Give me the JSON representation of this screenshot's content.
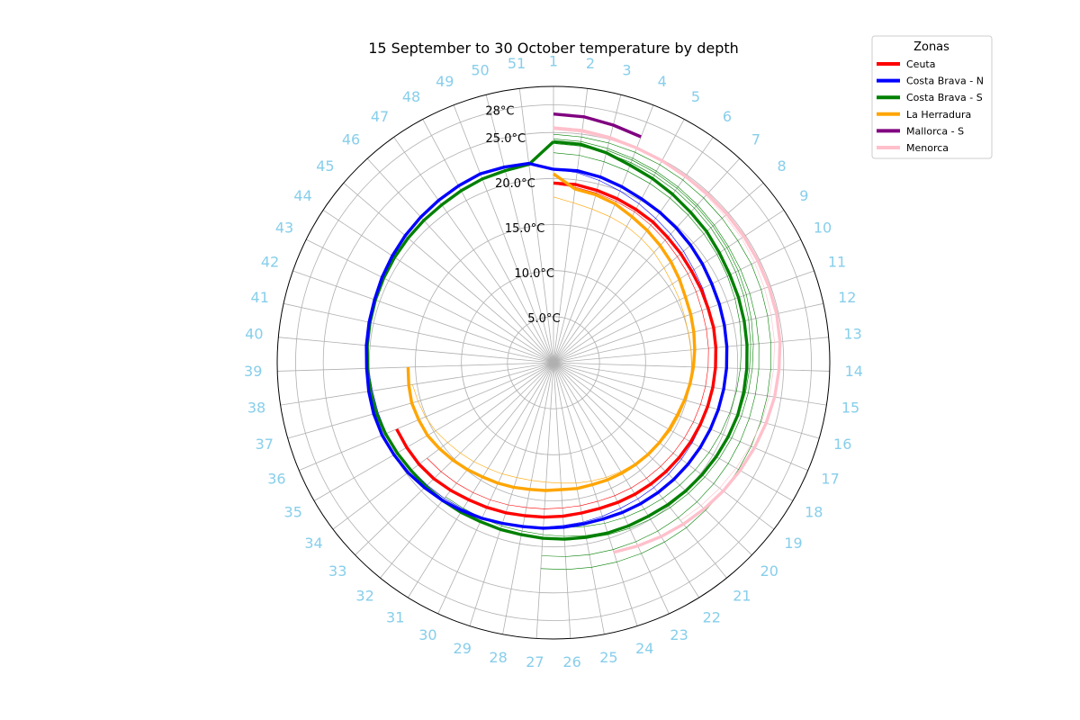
{
  "chart_data": {
    "type": "line",
    "projection": "polar",
    "title": "15 September to 30 October temperature by depth",
    "angular_ticks": [
      "1",
      "2",
      "3",
      "4",
      "5",
      "6",
      "7",
      "8",
      "9",
      "10",
      "11",
      "12",
      "13",
      "14",
      "15",
      "16",
      "17",
      "18",
      "19",
      "20",
      "21",
      "22",
      "23",
      "24",
      "25",
      "26",
      "27",
      "28",
      "29",
      "30",
      "31",
      "32",
      "33",
      "34",
      "35",
      "36",
      "37",
      "38",
      "39",
      "40",
      "41",
      "42",
      "43",
      "44",
      "45",
      "46",
      "47",
      "48",
      "49",
      "50",
      "51"
    ],
    "angular_tick_color": "#87ceeb",
    "radial_ticks": [
      {
        "value": 5,
        "label": "5.0°C"
      },
      {
        "value": 10,
        "label": "10.0°C"
      },
      {
        "value": 15,
        "label": "15.0°C"
      },
      {
        "value": 20,
        "label": "20.0°C"
      },
      {
        "value": 25,
        "label": "25.0°C"
      },
      {
        "value": 28,
        "label": "28°C"
      }
    ],
    "rlim": [
      0,
      30
    ],
    "grid": true,
    "legend": {
      "title": "Zonas",
      "placement": "upper-right outside",
      "entries": [
        {
          "label": "Ceuta",
          "color": "#ff0000"
        },
        {
          "label": "Costa Brava - N",
          "color": "#0000ff"
        },
        {
          "label": "Costa Brava - S",
          "color": "#008000"
        },
        {
          "label": "La Herradura",
          "color": "#ffa500"
        },
        {
          "label": "Mallorca - S",
          "color": "#800080"
        },
        {
          "label": "Menorca",
          "color": "#ffc0cb"
        }
      ]
    },
    "series": [
      {
        "name": "Costa Brava - S",
        "color": "#008000",
        "style": "thin",
        "x": [
          1,
          2,
          3,
          4,
          5,
          6,
          7,
          8,
          9,
          10,
          11,
          12,
          13,
          14,
          15,
          16,
          17,
          18,
          19,
          20,
          21,
          22,
          23,
          24,
          25,
          26,
          27
        ],
        "y": [
          24.8,
          24.7,
          24.6,
          24.5,
          24.4,
          24.3,
          24.2,
          24.1,
          24.0,
          24.0,
          23.9,
          23.8,
          23.7,
          23.6,
          23.5,
          23.4,
          23.3,
          23.2,
          23.1,
          23.0,
          23.0,
          22.9,
          22.8,
          22.7,
          22.6,
          22.5,
          22.4
        ]
      },
      {
        "name": "Costa Brava - S",
        "color": "#008000",
        "style": "thin",
        "x": [
          1,
          2,
          3,
          4,
          5,
          6,
          7,
          8,
          9,
          10,
          11,
          12,
          13,
          14,
          15,
          16,
          17,
          18,
          19,
          20,
          21,
          22,
          23,
          24,
          25,
          26,
          27
        ],
        "y": [
          24.3,
          24.2,
          24.0,
          23.8,
          23.6,
          23.4,
          23.2,
          23.0,
          22.8,
          22.7,
          22.6,
          22.5,
          22.4,
          22.3,
          22.2,
          22.1,
          22.0,
          21.9,
          21.8,
          21.7,
          21.6,
          21.5,
          21.4,
          21.3,
          21.2,
          21.1,
          21.0
        ]
      },
      {
        "name": "Costa Brava - S",
        "color": "#008000",
        "style": "thin",
        "x": [
          1,
          2,
          3,
          4,
          5,
          6,
          7,
          8,
          9,
          10,
          11,
          12,
          13,
          14,
          15,
          16,
          17,
          18,
          19,
          20,
          21,
          22,
          23,
          24,
          25,
          26,
          27,
          28,
          29,
          30,
          31,
          32
        ],
        "y": [
          23.8,
          23.7,
          23.5,
          23.3,
          23.1,
          22.9,
          22.7,
          22.5,
          22.3,
          22.1,
          21.9,
          21.7,
          21.5,
          21.3,
          21.1,
          20.9,
          20.7,
          20.5,
          20.3,
          20.1,
          19.9,
          19.7,
          19.5,
          19.3,
          19.1,
          18.9,
          18.7,
          18.6,
          18.6,
          18.6,
          18.6,
          18.7
        ]
      },
      {
        "name": "Costa Brava - S",
        "color": "#008000",
        "style": "thin",
        "x": [
          1,
          2,
          3,
          4,
          5,
          6,
          7,
          8,
          9,
          10,
          11,
          12,
          13,
          14,
          15,
          16,
          17,
          18,
          19,
          20,
          21,
          22,
          23,
          24,
          25,
          26
        ],
        "y": [
          22.8,
          22.7,
          22.5,
          22.3,
          22.1,
          21.9,
          21.7,
          21.5,
          21.3,
          21.1,
          20.9,
          20.7,
          20.5,
          20.3,
          20.1,
          19.9,
          19.7,
          19.5,
          19.3,
          19.1,
          18.9,
          18.7,
          18.5,
          18.3,
          18.1,
          17.9
        ]
      },
      {
        "name": "Costa Brava - S",
        "color": "#008000",
        "style": "thin",
        "x": [
          3,
          4,
          5,
          6,
          7,
          8,
          9,
          10,
          11,
          12,
          13,
          14,
          15,
          16,
          17,
          18,
          19,
          20,
          21,
          22,
          23,
          24,
          25,
          26
        ],
        "y": [
          23.8,
          23.6,
          23.4,
          23.2,
          23.0,
          22.8,
          22.6,
          22.4,
          22.2,
          22.0,
          21.8,
          21.6,
          21.4,
          21.2,
          21.0,
          20.8,
          20.6,
          20.4,
          20.2,
          20.0,
          19.8,
          19.6,
          19.4,
          19.2
        ]
      },
      {
        "name": "Costa Brava - N",
        "color": "#0000ff",
        "style": "thin",
        "x": [
          1,
          2,
          3,
          4,
          5,
          6,
          7,
          8,
          9,
          10,
          11,
          12,
          13,
          14,
          15,
          16,
          17,
          18,
          19,
          20,
          21,
          22,
          23,
          24,
          25,
          26,
          27,
          28,
          29,
          30,
          31,
          32,
          33,
          34,
          35,
          36,
          37,
          38,
          39,
          40
        ],
        "y": [
          21.0,
          20.8,
          20.4,
          20.0,
          19.6,
          19.2,
          18.9,
          18.6,
          18.3,
          18.1,
          17.9,
          17.7,
          17.6,
          17.5,
          17.4,
          17.4,
          17.4,
          17.4,
          17.4,
          17.4,
          17.4,
          17.4,
          17.4,
          17.5,
          17.6,
          17.7,
          17.9,
          18.1,
          18.3,
          18.5,
          18.7,
          18.9,
          19.1,
          19.3,
          19.5,
          19.7,
          19.8,
          19.9,
          20.1,
          20.2
        ]
      },
      {
        "name": "Ceuta",
        "color": "#ff0000",
        "style": "thin",
        "x": [
          1,
          2,
          3,
          4,
          5,
          6,
          7,
          8,
          9,
          10,
          11,
          12,
          13,
          14,
          15,
          16,
          17,
          18,
          19,
          20,
          21,
          22,
          23,
          24,
          25,
          26,
          27,
          28,
          29,
          30,
          31,
          32,
          33,
          34
        ],
        "y": [
          19.4,
          19.2,
          19.0,
          18.8,
          18.6,
          18.3,
          18.0,
          17.7,
          17.5,
          17.3,
          17.1,
          17.0,
          16.9,
          16.8,
          16.7,
          16.6,
          16.5,
          16.4,
          16.3,
          16.2,
          16.1,
          16.0,
          15.9,
          15.8,
          15.8,
          15.8,
          15.9,
          16.0,
          16.2,
          16.4,
          16.6,
          16.8,
          17.0,
          17.2
        ]
      },
      {
        "name": "La Herradura",
        "color": "#ffa500",
        "style": "thin",
        "x": [
          1,
          2,
          3,
          4,
          5,
          6,
          7,
          8,
          9,
          10,
          11,
          12,
          13,
          14,
          15,
          16,
          17,
          18,
          19,
          20,
          21,
          22,
          23,
          24,
          25,
          26,
          27,
          28,
          29,
          30,
          31,
          32,
          33,
          34,
          35,
          36,
          37,
          38
        ],
        "y": [
          18.0,
          17.5,
          17.2,
          17.0,
          16.8,
          16.5,
          16.2,
          15.8,
          15.5,
          15.3,
          15.1,
          15.0,
          15.0,
          15.0,
          15.0,
          14.9,
          14.8,
          14.7,
          14.5,
          14.3,
          14.1,
          13.9,
          13.7,
          13.5,
          13.3,
          13.1,
          13.0,
          13.0,
          13.1,
          13.3,
          13.5,
          13.8,
          14.1,
          14.4,
          14.8,
          15.1,
          15.3,
          15.5
        ]
      },
      {
        "name": "Menorca",
        "color": "#ffc0cb",
        "style": "thin",
        "x": [
          1,
          2,
          3,
          4,
          5,
          6,
          7,
          8,
          9,
          10,
          11,
          12,
          13,
          14,
          15,
          16,
          17,
          18,
          19,
          20,
          21
        ],
        "y": [
          25.3,
          25.2,
          25.0,
          24.9,
          24.8,
          24.7,
          24.6,
          24.5,
          24.5,
          24.4,
          24.3,
          24.2,
          24.1,
          23.9,
          23.7,
          23.5,
          23.2,
          22.9,
          22.6,
          22.3,
          22.0
        ]
      },
      {
        "name": "Costa Brava - S",
        "color": "#008000",
        "style": "thick",
        "x": [
          1,
          2,
          3,
          4,
          5,
          6,
          7,
          8,
          9,
          10,
          11,
          12,
          13,
          14,
          15,
          16,
          17,
          18,
          19,
          20,
          21,
          22,
          23,
          24,
          25,
          26,
          27,
          28,
          29,
          30,
          31,
          32,
          33,
          34,
          35,
          36,
          37,
          38,
          39,
          40,
          41,
          42,
          43,
          44,
          45,
          46,
          47,
          48,
          49,
          50,
          51,
          52
        ],
        "y": [
          24.0,
          23.9,
          23.5,
          23.0,
          22.7,
          22.4,
          22.1,
          21.9,
          21.6,
          21.4,
          21.3,
          21.2,
          21.1,
          21.0,
          20.9,
          20.8,
          20.6,
          20.4,
          20.2,
          20.0,
          19.8,
          19.6,
          19.5,
          19.4,
          19.3,
          19.2,
          19.1,
          19.0,
          19.0,
          19.0,
          19.1,
          19.2,
          19.3,
          19.4,
          19.6,
          19.8,
          20.0,
          20.1,
          20.2,
          20.3,
          20.4,
          20.5,
          20.6,
          20.7,
          20.8,
          20.9,
          21.0,
          21.2,
          21.4,
          21.5,
          21.7,
          24.0
        ]
      },
      {
        "name": "Costa Brava - N",
        "color": "#0000ff",
        "style": "thick",
        "x": [
          1,
          2,
          3,
          4,
          5,
          6,
          7,
          8,
          9,
          10,
          11,
          12,
          13,
          14,
          15,
          16,
          17,
          18,
          19,
          20,
          21,
          22,
          23,
          24,
          25,
          26,
          27,
          28,
          29,
          30,
          31,
          32,
          33,
          34,
          35,
          36,
          37,
          38,
          39,
          40,
          41,
          42,
          43,
          44,
          45,
          46,
          47,
          48,
          49,
          50,
          51,
          52
        ],
        "y": [
          21.0,
          21.0,
          20.8,
          20.5,
          20.2,
          20.0,
          19.8,
          19.6,
          19.4,
          19.2,
          19.1,
          19.0,
          18.9,
          18.8,
          18.7,
          18.6,
          18.5,
          18.4,
          18.3,
          18.2,
          18.1,
          18.0,
          17.9,
          17.8,
          17.8,
          17.9,
          18.0,
          18.1,
          18.3,
          18.6,
          18.9,
          19.2,
          19.5,
          19.8,
          20.0,
          20.2,
          20.3,
          20.3,
          20.3,
          20.4,
          20.5,
          20.6,
          20.8,
          21.0,
          21.2,
          21.4,
          21.6,
          21.8,
          22.0,
          21.9,
          21.8,
          21.0
        ]
      },
      {
        "name": "Ceuta",
        "color": "#ff0000",
        "style": "thick",
        "x": [
          1,
          2,
          3,
          4,
          5,
          6,
          7,
          8,
          9,
          10,
          11,
          12,
          13,
          14,
          15,
          16,
          17,
          18,
          19,
          20,
          21,
          22,
          23,
          24,
          25,
          26,
          27,
          28,
          29,
          30,
          31,
          32,
          33,
          34,
          35,
          36
        ],
        "y": [
          19.5,
          19.5,
          19.3,
          19.1,
          18.9,
          18.7,
          18.4,
          18.2,
          18.0,
          17.9,
          17.8,
          17.8,
          17.7,
          17.6,
          17.5,
          17.4,
          17.3,
          17.2,
          17.1,
          17.0,
          16.9,
          16.8,
          16.7,
          16.6,
          16.6,
          16.7,
          16.8,
          16.9,
          17.1,
          17.3,
          17.5,
          17.8,
          18.1,
          18.3,
          18.4,
          18.5
        ]
      },
      {
        "name": "La Herradura",
        "color": "#ffa500",
        "style": "thick",
        "x": [
          1,
          2,
          3,
          4,
          5,
          6,
          7,
          8,
          9,
          10,
          11,
          12,
          13,
          14,
          15,
          16,
          17,
          18,
          19,
          20,
          21,
          22,
          23,
          24,
          25,
          26,
          27,
          28,
          29,
          30,
          31,
          32,
          33,
          34,
          35,
          36,
          37,
          38,
          39
        ],
        "y": [
          20.5,
          19.0,
          18.8,
          18.5,
          18.0,
          17.6,
          17.2,
          16.8,
          16.4,
          16.0,
          15.8,
          15.6,
          15.4,
          15.2,
          15.0,
          14.8,
          14.6,
          14.5,
          14.4,
          14.3,
          14.2,
          14.1,
          14.0,
          13.9,
          13.9,
          13.8,
          13.9,
          14.0,
          14.2,
          14.4,
          14.6,
          14.9,
          15.2,
          15.5,
          15.8,
          15.9,
          16.0,
          15.9,
          15.8
        ]
      },
      {
        "name": "Menorca",
        "color": "#ffc0cb",
        "style": "thick",
        "x": [
          1,
          2,
          3,
          4,
          5,
          6,
          7,
          8,
          9,
          10,
          11,
          12,
          13,
          14,
          15,
          16,
          17,
          18,
          19,
          20,
          21,
          22,
          23,
          24
        ],
        "y": [
          25.5,
          25.4,
          25.2,
          25.0,
          24.9,
          24.8,
          24.8,
          24.8,
          24.8,
          24.8,
          24.8,
          24.8,
          24.7,
          24.5,
          24.3,
          24.0,
          23.7,
          23.4,
          23.1,
          22.8,
          22.5,
          22.2,
          21.9,
          21.6
        ]
      },
      {
        "name": "Mallorca - S",
        "color": "#800080",
        "style": "thick",
        "x": [
          1,
          2,
          3,
          4
        ],
        "y": [
          27.0,
          26.9,
          26.6,
          26.3
        ]
      }
    ]
  }
}
